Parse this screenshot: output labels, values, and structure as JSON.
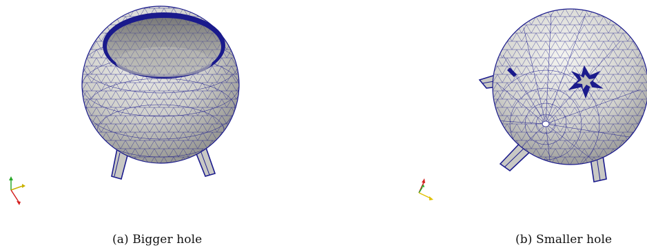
{
  "figure": {
    "panels": [
      {
        "id": "a",
        "caption": "(a) Bigger hole"
      },
      {
        "id": "b",
        "caption": "(b) Smaller hole"
      }
    ]
  },
  "colors": {
    "mesh_fill": "#d9d9d4",
    "mesh_shade": "#9a9a96",
    "mesh_edge": "#1a1a8c",
    "axis_x": "#d42020",
    "axis_y": "#2aa82a",
    "axis_z": "#e0c000"
  }
}
